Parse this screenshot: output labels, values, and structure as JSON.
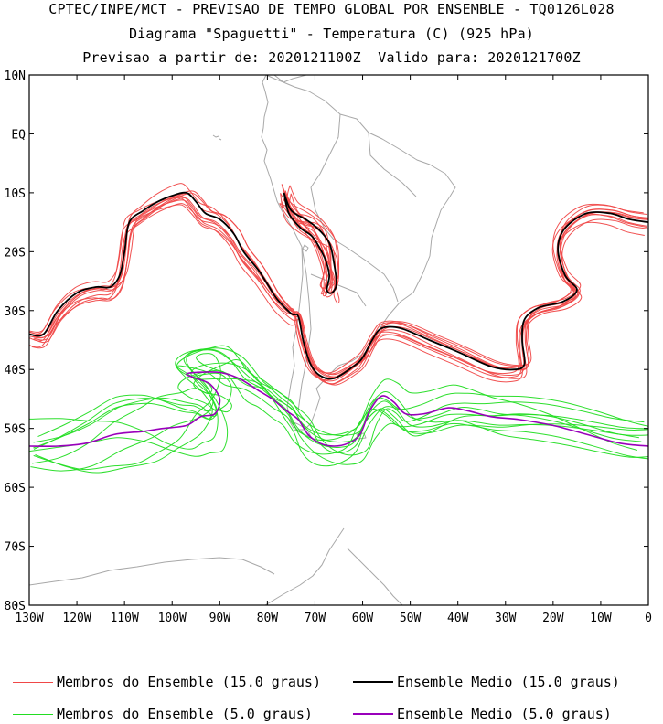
{
  "header": {
    "line1": "CPTEC/INPE/MCT - PREVISAO DE TEMPO GLOBAL POR ENSEMBLE - TQ0126L028",
    "line2": "Diagrama \"Spaguetti\" - Temperatura (C) (925 hPa)",
    "line3": "Previsao a partir de: 2020121100Z  Valido para: 2020121700Z"
  },
  "legend": {
    "members15": "Membros do Ensemble (15.0 graus)",
    "mean15": "Ensemble Medio (15.0 graus)",
    "members5": "Membros do Ensemble (5.0 graus)",
    "mean5": "Ensemble Medio (5.0 graus)"
  },
  "colors": {
    "members15": "#f04848",
    "mean15": "#000000",
    "members5": "#22dd22",
    "mean5": "#9900bb",
    "coast": "#a8a8a8"
  },
  "chart_data": {
    "type": "line",
    "map": "South America, Southeast Pacific and South Atlantic",
    "xlim": [
      -130,
      0
    ],
    "ylim": [
      -80,
      10
    ],
    "x_ticks": [
      {
        "value": -130,
        "label": "130W"
      },
      {
        "value": -120,
        "label": "120W"
      },
      {
        "value": -110,
        "label": "110W"
      },
      {
        "value": -100,
        "label": "100W"
      },
      {
        "value": -90,
        "label": "90W"
      },
      {
        "value": -80,
        "label": "80W"
      },
      {
        "value": -70,
        "label": "70W"
      },
      {
        "value": -60,
        "label": "60W"
      },
      {
        "value": -50,
        "label": "50W"
      },
      {
        "value": -40,
        "label": "40W"
      },
      {
        "value": -30,
        "label": "30W"
      },
      {
        "value": -20,
        "label": "20W"
      },
      {
        "value": -10,
        "label": "10W"
      },
      {
        "value": 0,
        "label": "0"
      }
    ],
    "y_ticks": [
      {
        "value": 10,
        "label": "10N"
      },
      {
        "value": 0,
        "label": "EQ"
      },
      {
        "value": -10,
        "label": "10S"
      },
      {
        "value": -20,
        "label": "20S"
      },
      {
        "value": -30,
        "label": "30S"
      },
      {
        "value": -40,
        "label": "40S"
      },
      {
        "value": -50,
        "label": "50S"
      },
      {
        "value": -60,
        "label": "60S"
      },
      {
        "value": -70,
        "label": "70S"
      },
      {
        "value": -80,
        "label": "80S"
      }
    ],
    "series": [
      {
        "name": "Ensemble Medio (15.0 graus)",
        "role": "mean15",
        "members": 10,
        "points": [
          [
            -130,
            -34
          ],
          [
            -127,
            -34
          ],
          [
            -124,
            -30
          ],
          [
            -120,
            -27
          ],
          [
            -116,
            -26
          ],
          [
            -113,
            -26
          ],
          [
            -111,
            -24
          ],
          [
            -110,
            -20
          ],
          [
            -109,
            -15
          ],
          [
            -106,
            -13
          ],
          [
            -103,
            -11.5
          ],
          [
            -100,
            -10.5
          ],
          [
            -97,
            -10
          ],
          [
            -95,
            -11.5
          ],
          [
            -93,
            -13.5
          ],
          [
            -90,
            -14.5
          ],
          [
            -87,
            -17
          ],
          [
            -85,
            -20
          ],
          [
            -82,
            -23
          ],
          [
            -80,
            -25.5
          ],
          [
            -78,
            -28
          ],
          [
            -75,
            -30.5
          ],
          [
            -73.5,
            -31
          ],
          [
            -72.5,
            -35
          ],
          [
            -71,
            -39
          ],
          [
            -69,
            -41
          ],
          [
            -66,
            -41.5
          ],
          [
            -62,
            -39.5
          ],
          [
            -60,
            -38
          ],
          [
            -58,
            -35
          ],
          [
            -56,
            -33
          ],
          [
            -52,
            -33
          ],
          [
            -46,
            -35
          ],
          [
            -40,
            -37
          ],
          [
            -33,
            -39.5
          ],
          [
            -28,
            -40
          ],
          [
            -26,
            -39
          ],
          [
            -26.5,
            -35
          ],
          [
            -26,
            -31.5
          ],
          [
            -23,
            -29.5
          ],
          [
            -18,
            -28.5
          ],
          [
            -15,
            -26.5
          ],
          [
            -17.5,
            -24
          ],
          [
            -19,
            -19.5
          ],
          [
            -17.5,
            -16
          ],
          [
            -13,
            -13.5
          ],
          [
            -8,
            -13.5
          ],
          [
            -4,
            -14.5
          ],
          [
            0,
            -15
          ]
        ]
      },
      {
        "name": "Ensemble Medio (15.0 graus)",
        "role": "mean15",
        "members": 8,
        "points": [
          [
            -76.5,
            -10
          ],
          [
            -75,
            -13
          ],
          [
            -72,
            -14.5
          ],
          [
            -69.5,
            -16
          ],
          [
            -67,
            -18.5
          ],
          [
            -66,
            -22
          ],
          [
            -65.5,
            -25.5
          ],
          [
            -66.5,
            -27
          ],
          [
            -67.5,
            -26.5
          ],
          [
            -67,
            -24
          ],
          [
            -68,
            -21
          ],
          [
            -70.5,
            -17.5
          ],
          [
            -73,
            -16
          ],
          [
            -75.5,
            -13.5
          ],
          [
            -76.5,
            -10
          ]
        ]
      },
      {
        "name": "Ensemble Medio (5.0 graus)",
        "role": "mean5",
        "members": 10,
        "points": [
          [
            -130,
            -53
          ],
          [
            -124,
            -53
          ],
          [
            -118,
            -52.5
          ],
          [
            -112,
            -51
          ],
          [
            -106,
            -50.5
          ],
          [
            -102,
            -50
          ],
          [
            -97,
            -49.5
          ],
          [
            -94,
            -48
          ],
          [
            -91,
            -47.5
          ],
          [
            -90,
            -45
          ],
          [
            -92,
            -42.5
          ],
          [
            -95,
            -41.5
          ],
          [
            -97,
            -40.8
          ],
          [
            -95,
            -40.5
          ],
          [
            -90,
            -40.5
          ],
          [
            -86,
            -41.5
          ],
          [
            -82,
            -43.5
          ],
          [
            -79,
            -45
          ],
          [
            -76,
            -47
          ],
          [
            -73.5,
            -48.5
          ],
          [
            -71.5,
            -51
          ],
          [
            -69,
            -52.5
          ],
          [
            -66,
            -53
          ],
          [
            -63,
            -52.5
          ],
          [
            -60.5,
            -51
          ],
          [
            -58.5,
            -47
          ],
          [
            -56,
            -44.5
          ],
          [
            -53.5,
            -45.5
          ],
          [
            -51,
            -47.5
          ],
          [
            -47,
            -47.5
          ],
          [
            -42,
            -46.5
          ],
          [
            -38,
            -47
          ],
          [
            -33,
            -48
          ],
          [
            -27,
            -48.5
          ],
          [
            -20,
            -49.5
          ],
          [
            -13,
            -51
          ],
          [
            -6,
            -52.5
          ],
          [
            0,
            -53
          ]
        ]
      }
    ]
  }
}
